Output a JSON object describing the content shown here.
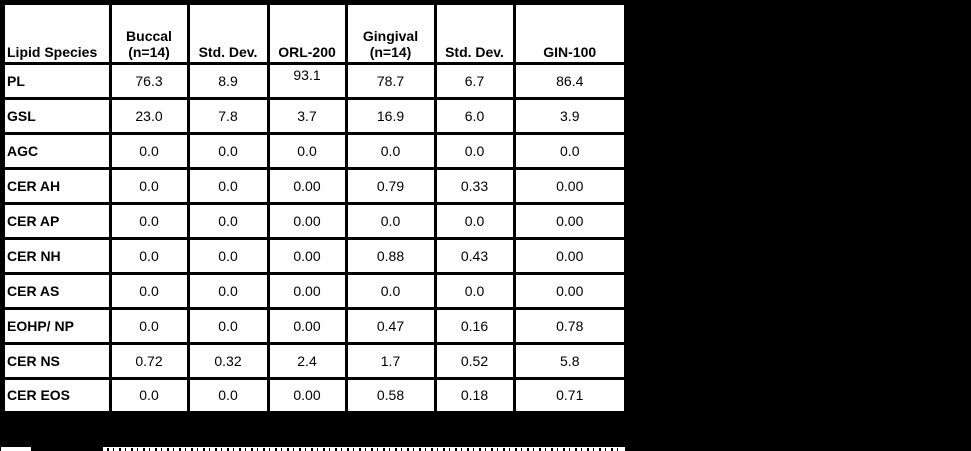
{
  "chart_data": {
    "type": "table",
    "title": "",
    "columns": [
      "Lipid Species",
      "Buccal\n(n=14)",
      "Std. Dev.",
      "ORL-200",
      "Gingival\n(n=14)",
      "Std. Dev.",
      "GIN-100"
    ],
    "rows": [
      {
        "label": "PL",
        "values": [
          "76.3",
          "8.9",
          "93.1",
          "78.7",
          "6.7",
          "86.4"
        ]
      },
      {
        "label": "GSL",
        "values": [
          "23.0",
          "7.8",
          "3.7",
          "16.9",
          "6.0",
          "3.9"
        ]
      },
      {
        "label": "AGC",
        "values": [
          "0.0",
          "0.0",
          "0.0",
          "0.0",
          "0.0",
          "0.0"
        ]
      },
      {
        "label": "CER AH",
        "values": [
          "0.0",
          "0.0",
          "0.00",
          "0.79",
          "0.33",
          "0.00"
        ]
      },
      {
        "label": "CER AP",
        "values": [
          "0.0",
          "0.0",
          "0.00",
          "0.0",
          "0.0",
          "0.00"
        ]
      },
      {
        "label": "CER NH",
        "values": [
          "0.0",
          "0.0",
          "0.00",
          "0.88",
          "0.43",
          "0.00"
        ]
      },
      {
        "label": "CER AS",
        "values": [
          "0.0",
          "0.0",
          "0.00",
          "0.0",
          "0.0",
          "0.00"
        ]
      },
      {
        "label": "EOHP/ NP",
        "values": [
          "0.0",
          "0.0",
          "0.00",
          "0.47",
          "0.16",
          "0.78"
        ]
      },
      {
        "label": "CER NS",
        "values": [
          "0.72",
          "0.32",
          "2.4",
          "1.7",
          "0.52",
          "5.8"
        ]
      },
      {
        "label": "CER EOS",
        "values": [
          "0.0",
          "0.0",
          "0.00",
          "0.58",
          "0.18",
          "0.71"
        ]
      }
    ],
    "legend_position": "none",
    "grid": "thick-black-cell-borders"
  },
  "layout_quirks": {
    "raised_cell_row": 0,
    "raised_cell_col": 2
  },
  "colors": {
    "page_background": "#000000",
    "cell_background": "#ffffff",
    "border": "#000000",
    "text": "#000000"
  }
}
